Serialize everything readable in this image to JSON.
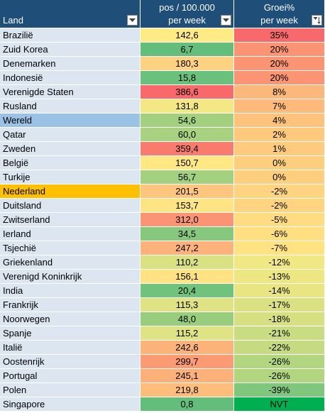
{
  "header": {
    "col_land": "Land",
    "col_pos_line1": "pos / 100.000",
    "col_pos_line2": "per week",
    "col_groei_line1": "Groei%",
    "col_groei_line2": "per week",
    "filter_icon": "filter-dropdown-icon",
    "sort_filter_icon": "sort-descending-filter-icon"
  },
  "colors": {
    "header_bg": "#1f4e79",
    "land_default_bg": "#dce6f1",
    "wereld_bg": "#9bc2e6",
    "nederland_bg": "#ffc000"
  },
  "rows": [
    {
      "land": "Brazilië",
      "pos": "142,6",
      "pos_color": "#ffeb84",
      "groei": "35%",
      "groei_color": "#f8696b"
    },
    {
      "land": "Zuid Korea",
      "pos": "6,7",
      "pos_color": "#63be7b",
      "groei": "20%",
      "groei_color": "#fa9473"
    },
    {
      "land": "Denemarken",
      "pos": "180,3",
      "pos_color": "#fed280",
      "groei": "20%",
      "groei_color": "#fa9473"
    },
    {
      "land": "Indonesië",
      "pos": "15,8",
      "pos_color": "#6ac17c",
      "groei": "20%",
      "groei_color": "#fa9473"
    },
    {
      "land": "Verenigde Staten",
      "pos": "386,6",
      "pos_color": "#f8696b",
      "groei": "8%",
      "groei_color": "#fcb77a"
    },
    {
      "land": "Rusland",
      "pos": "131,8",
      "pos_color": "#f3e883",
      "groei": "7%",
      "groei_color": "#fdba7b"
    },
    {
      "land": "Wereld",
      "land_bg": "#9bc2e6",
      "pos": "54,6",
      "pos_color": "#a2d07f",
      "groei": "4%",
      "groei_color": "#fdc27c"
    },
    {
      "land": "Qatar",
      "pos": "60,0",
      "pos_color": "#a8d27f",
      "groei": "2%",
      "groei_color": "#fec87d"
    },
    {
      "land": "Zweden",
      "pos": "359,4",
      "pos_color": "#f97b6e",
      "groei": "1%",
      "groei_color": "#fecb7e"
    },
    {
      "land": "België",
      "pos": "150,7",
      "pos_color": "#ffe783",
      "groei": "0%",
      "groei_color": "#fece7f"
    },
    {
      "land": "Turkije",
      "pos": "56,7",
      "pos_color": "#a4d17f",
      "groei": "0%",
      "groei_color": "#fece7f"
    },
    {
      "land": "Nederland",
      "land_bg": "#ffc000",
      "pos": "201,5",
      "pos_color": "#fdc57d",
      "groei": "-2%",
      "groei_color": "#fed480"
    },
    {
      "land": "Duitsland",
      "pos": "153,7",
      "pos_color": "#ffe483",
      "groei": "-2%",
      "groei_color": "#fed480"
    },
    {
      "land": "Zwitserland",
      "pos": "312,0",
      "pos_color": "#fa9473",
      "groei": "-5%",
      "groei_color": "#ffdc81"
    },
    {
      "land": "Ierland",
      "pos": "34,5",
      "pos_color": "#86c87d",
      "groei": "-6%",
      "groei_color": "#ffdf82"
    },
    {
      "land": "Tsjechië",
      "pos": "247,2",
      "pos_color": "#fcb27a",
      "groei": "-7%",
      "groei_color": "#ffe282"
    },
    {
      "land": "Griekenland",
      "pos": "110,2",
      "pos_color": "#dae182",
      "groei": "-12%",
      "groei_color": "#f1e783"
    },
    {
      "land": "Verenigd Koninkrijk",
      "pos": "156,1",
      "pos_color": "#ffe383",
      "groei": "-13%",
      "groei_color": "#ece683"
    },
    {
      "land": "India",
      "pos": "20,4",
      "pos_color": "#70c37c",
      "groei": "-14%",
      "groei_color": "#e8e582"
    },
    {
      "land": "Frankrijk",
      "pos": "115,3",
      "pos_color": "#e0e383",
      "groei": "-17%",
      "groei_color": "#dbe182"
    },
    {
      "land": "Noorwegen",
      "pos": "48,0",
      "pos_color": "#99cd7e",
      "groei": "-18%",
      "groei_color": "#d6e082"
    },
    {
      "land": "Spanje",
      "pos": "115,2",
      "pos_color": "#e0e383",
      "groei": "-21%",
      "groei_color": "#c9dc81"
    },
    {
      "land": "Italië",
      "pos": "242,6",
      "pos_color": "#fcb37a",
      "groei": "-22%",
      "groei_color": "#c4db81"
    },
    {
      "land": "Oostenrijk",
      "pos": "299,7",
      "pos_color": "#fa9b74",
      "groei": "-26%",
      "groei_color": "#b2d680"
    },
    {
      "land": "Portugal",
      "pos": "245,1",
      "pos_color": "#fcb17a",
      "groei": "-26%",
      "groei_color": "#b2d680"
    },
    {
      "land": "Polen",
      "pos": "219,8",
      "pos_color": "#fdbd7b",
      "groei": "-39%",
      "groei_color": "#7ec77c"
    },
    {
      "land": "Singapore",
      "pos": "0,8",
      "pos_color": "#63be7b",
      "groei": "NVT",
      "groei_color": "#00b050"
    }
  ]
}
